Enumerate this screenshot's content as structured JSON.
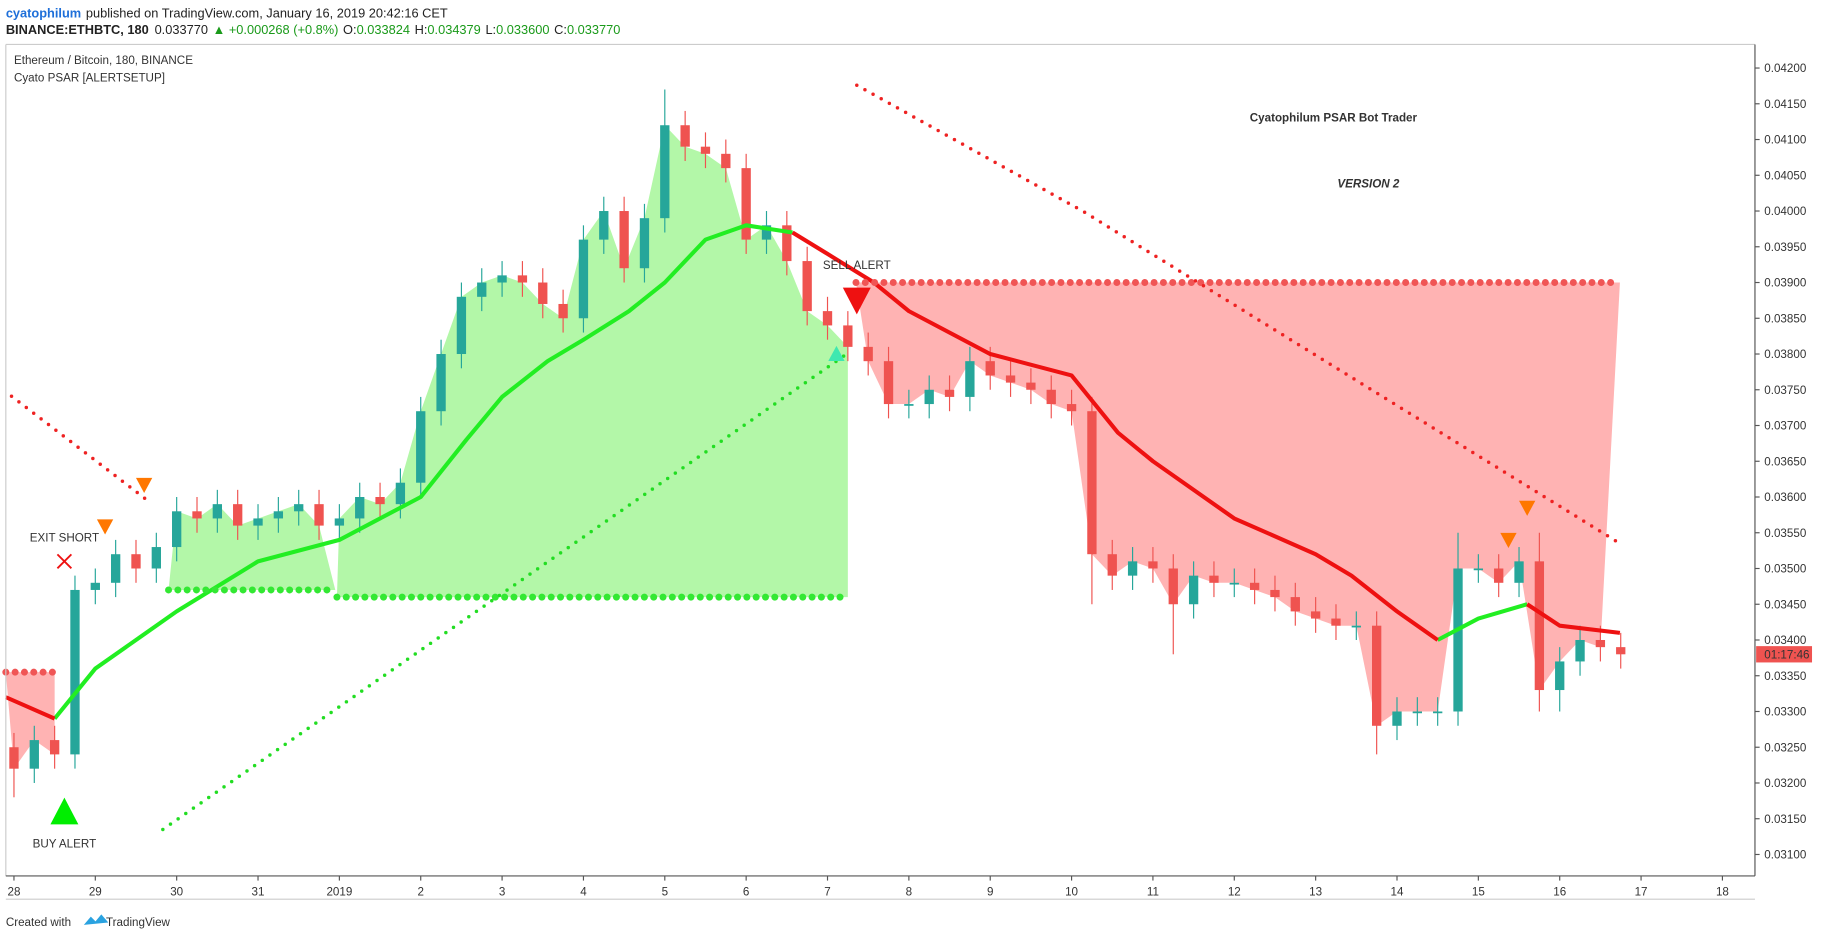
{
  "header": {
    "author": "cyatophilum",
    "published": "published on TradingView.com, January 16, 2019 20:42:16 CET",
    "symbol": "BINANCE:ETHBTC, 180",
    "last": "0.033770",
    "change": "▲ +0.000268 (+0.8%)",
    "o_label": "O:",
    "o": "0.033824",
    "h_label": "H:",
    "h": "0.034379",
    "l_label": "L:",
    "l": "0.033600",
    "c_label": "C:",
    "c": "0.033770"
  },
  "footer": {
    "created": "Created with",
    "brand": "TradingView"
  },
  "chart_data": {
    "type": "candlestick",
    "title": "Cyatophilum PSAR Bot Trader",
    "subtitle": "VERSION 2",
    "legend_title": "Ethereum / Bitcoin, 180, BINANCE",
    "indicator": "Cyato PSAR [ALERTSETUP]",
    "time_tag": "01:17:46",
    "up_color": "#26a69a",
    "down_color": "#ef5350",
    "xlim": [
      -0.1,
      21.4
    ],
    "ylim": [
      0.0307,
      0.04233
    ],
    "xticks": [
      {
        "value": 0,
        "label": "28"
      },
      {
        "value": 1,
        "label": "29"
      },
      {
        "value": 2,
        "label": "30"
      },
      {
        "value": 3,
        "label": "31"
      },
      {
        "value": 4,
        "label": "2019"
      },
      {
        "value": 5,
        "label": "2"
      },
      {
        "value": 6,
        "label": "3"
      },
      {
        "value": 7,
        "label": "4"
      },
      {
        "value": 8,
        "label": "5"
      },
      {
        "value": 9,
        "label": "6"
      },
      {
        "value": 10,
        "label": "7"
      },
      {
        "value": 11,
        "label": "8"
      },
      {
        "value": 12,
        "label": "9"
      },
      {
        "value": 13,
        "label": "10"
      },
      {
        "value": 14,
        "label": "11"
      },
      {
        "value": 15,
        "label": "12"
      },
      {
        "value": 16,
        "label": "13"
      },
      {
        "value": 17,
        "label": "14"
      },
      {
        "value": 18,
        "label": "15"
      },
      {
        "value": 19,
        "label": "16"
      },
      {
        "value": 20,
        "label": "17"
      },
      {
        "value": 21,
        "label": "18"
      }
    ],
    "yticks": [
      {
        "value": 0.042,
        "label": "0.04200"
      },
      {
        "value": 0.0415,
        "label": "0.04150"
      },
      {
        "value": 0.041,
        "label": "0.04100"
      },
      {
        "value": 0.0405,
        "label": "0.04050"
      },
      {
        "value": 0.04,
        "label": "0.04000"
      },
      {
        "value": 0.0395,
        "label": "0.03950"
      },
      {
        "value": 0.039,
        "label": "0.03900"
      },
      {
        "value": 0.0385,
        "label": "0.03850"
      },
      {
        "value": 0.038,
        "label": "0.03800"
      },
      {
        "value": 0.0375,
        "label": "0.03750"
      },
      {
        "value": 0.037,
        "label": "0.03700"
      },
      {
        "value": 0.0365,
        "label": "0.03650"
      },
      {
        "value": 0.036,
        "label": "0.03600"
      },
      {
        "value": 0.0355,
        "label": "0.03550"
      },
      {
        "value": 0.035,
        "label": "0.03500"
      },
      {
        "value": 0.0345,
        "label": "0.03450"
      },
      {
        "value": 0.034,
        "label": "0.03400"
      },
      {
        "value": 0.0335,
        "label": "0.03350"
      },
      {
        "value": 0.033,
        "label": "0.03300"
      },
      {
        "value": 0.0325,
        "label": "0.03250"
      },
      {
        "value": 0.032,
        "label": "0.03200"
      },
      {
        "value": 0.0315,
        "label": "0.03150"
      },
      {
        "value": 0.031,
        "label": "0.03100"
      }
    ],
    "x": [
      0,
      0.25,
      0.5,
      0.75,
      1,
      1.25,
      1.5,
      1.75,
      2,
      2.25,
      2.5,
      2.75,
      3,
      3.25,
      3.5,
      3.75,
      4,
      4.25,
      4.5,
      4.75,
      5,
      5.25,
      5.5,
      5.75,
      6,
      6.25,
      6.5,
      6.75,
      7,
      7.25,
      7.5,
      7.75,
      8,
      8.25,
      8.5,
      8.75,
      9,
      9.25,
      9.5,
      9.75,
      10,
      10.25,
      10.5,
      10.75,
      11,
      11.25,
      11.5,
      11.75,
      12,
      12.25,
      12.5,
      12.75,
      13,
      13.25,
      13.5,
      13.75,
      14,
      14.25,
      14.5,
      14.75,
      15,
      15.25,
      15.5,
      15.75,
      16,
      16.25,
      16.5,
      16.75,
      17,
      17.25,
      17.5,
      17.75,
      18,
      18.25,
      18.5,
      18.75,
      19,
      19.25,
      19.5,
      19.75
    ],
    "open": [
      0.0325,
      0.0322,
      0.0326,
      0.0324,
      0.0347,
      0.0348,
      0.0352,
      0.035,
      0.0353,
      0.0358,
      0.0357,
      0.0359,
      0.0356,
      0.0357,
      0.0358,
      0.0359,
      0.0356,
      0.0357,
      0.036,
      0.0359,
      0.0362,
      0.0372,
      0.038,
      0.0388,
      0.039,
      0.0391,
      0.039,
      0.0387,
      0.0385,
      0.0396,
      0.04,
      0.0392,
      0.0399,
      0.0412,
      0.0409,
      0.0408,
      0.0406,
      0.0396,
      0.0398,
      0.0393,
      0.0386,
      0.0384,
      0.0381,
      0.0379,
      0.0373,
      0.0373,
      0.0375,
      0.0374,
      0.0379,
      0.0377,
      0.0376,
      0.0375,
      0.0373,
      0.0372,
      0.0352,
      0.0349,
      0.0351,
      0.035,
      0.0345,
      0.0349,
      0.0348,
      0.0348,
      0.0347,
      0.0346,
      0.0344,
      0.0343,
      0.0342,
      0.0342,
      0.0328,
      0.033,
      0.033,
      0.033,
      0.035,
      0.035,
      0.0348,
      0.0351,
      0.0333,
      0.0337,
      0.034,
      0.0339
    ],
    "high": [
      0.0327,
      0.0328,
      0.0328,
      0.0349,
      0.035,
      0.0354,
      0.0354,
      0.0355,
      0.036,
      0.036,
      0.0361,
      0.0361,
      0.0359,
      0.036,
      0.0361,
      0.0361,
      0.0359,
      0.0362,
      0.0362,
      0.0364,
      0.0374,
      0.0382,
      0.039,
      0.0392,
      0.0393,
      0.0393,
      0.0392,
      0.0389,
      0.0398,
      0.0402,
      0.0402,
      0.0401,
      0.0417,
      0.0414,
      0.0411,
      0.041,
      0.0408,
      0.04,
      0.04,
      0.0395,
      0.0388,
      0.0386,
      0.0383,
      0.0381,
      0.0375,
      0.0377,
      0.0377,
      0.0381,
      0.0381,
      0.0379,
      0.0378,
      0.0377,
      0.0375,
      0.0374,
      0.0354,
      0.0353,
      0.0353,
      0.0352,
      0.0351,
      0.0351,
      0.035,
      0.035,
      0.0349,
      0.0348,
      0.0346,
      0.0345,
      0.0344,
      0.0344,
      0.0332,
      0.0332,
      0.0332,
      0.0355,
      0.0352,
      0.0352,
      0.0353,
      0.0355,
      0.0339,
      0.0342,
      0.0342,
      0.0341
    ],
    "low": [
      0.0318,
      0.032,
      0.0322,
      0.0322,
      0.0345,
      0.0346,
      0.0348,
      0.0348,
      0.0351,
      0.0355,
      0.0355,
      0.0354,
      0.0354,
      0.0355,
      0.0356,
      0.0354,
      0.0354,
      0.0355,
      0.0357,
      0.0357,
      0.036,
      0.037,
      0.0378,
      0.0386,
      0.0388,
      0.0388,
      0.0385,
      0.0383,
      0.0383,
      0.0394,
      0.039,
      0.039,
      0.0397,
      0.0407,
      0.0406,
      0.0404,
      0.0394,
      0.0394,
      0.0391,
      0.0384,
      0.0382,
      0.0379,
      0.0377,
      0.0371,
      0.0371,
      0.0371,
      0.0372,
      0.0372,
      0.0375,
      0.0374,
      0.0373,
      0.0371,
      0.037,
      0.0345,
      0.0347,
      0.0347,
      0.0348,
      0.0338,
      0.0343,
      0.0346,
      0.0346,
      0.0345,
      0.0344,
      0.0342,
      0.0341,
      0.034,
      0.034,
      0.0324,
      0.0326,
      0.0328,
      0.0328,
      0.0328,
      0.0348,
      0.0346,
      0.0346,
      0.033,
      0.033,
      0.0335,
      0.0337,
      0.0336
    ],
    "close": [
      0.0322,
      0.0326,
      0.0324,
      0.0347,
      0.0348,
      0.0352,
      0.035,
      0.0353,
      0.0358,
      0.0357,
      0.0359,
      0.0356,
      0.0357,
      0.0358,
      0.0359,
      0.0356,
      0.0357,
      0.036,
      0.0359,
      0.0362,
      0.0372,
      0.038,
      0.0388,
      0.039,
      0.0391,
      0.039,
      0.0387,
      0.0385,
      0.0396,
      0.04,
      0.0392,
      0.0399,
      0.0412,
      0.0409,
      0.0408,
      0.0406,
      0.0396,
      0.0398,
      0.0393,
      0.0386,
      0.0384,
      0.0381,
      0.0379,
      0.0373,
      0.0373,
      0.0375,
      0.0374,
      0.0379,
      0.0377,
      0.0376,
      0.0375,
      0.0373,
      0.0372,
      0.0352,
      0.0349,
      0.0351,
      0.035,
      0.0345,
      0.0349,
      0.0348,
      0.0348,
      0.0347,
      0.0346,
      0.0344,
      0.0343,
      0.0342,
      0.0342,
      0.0328,
      0.033,
      0.033,
      0.033,
      0.035,
      0.035,
      0.0348,
      0.0351,
      0.0333,
      0.0337,
      0.034,
      0.0339,
      0.0338
    ],
    "ma": {
      "x": [
        -0.1,
        0.5,
        1,
        2,
        3,
        4,
        5,
        5.56,
        6,
        6.56,
        7,
        7.56,
        8,
        8.5,
        9,
        9.57,
        10,
        10.57,
        11,
        12,
        13,
        13.57,
        14,
        15,
        16,
        16.44,
        17,
        17.5,
        18,
        18.6,
        19,
        19.74
      ],
      "series": [
        {
          "color": "#22ee22",
          "values": [
            null,
            0.0329,
            0.0336,
            0.0344,
            0.0351,
            0.0354,
            0.036,
            0.0368,
            0.0374,
            0.0379,
            0.0382,
            0.0386,
            0.039,
            0.0396,
            0.0398,
            0.0397,
            null,
            null,
            null,
            null,
            null,
            null,
            null,
            null,
            null,
            null,
            null,
            0.034,
            0.0343,
            0.0345,
            null,
            null
          ]
        },
        {
          "color": "#ee1111",
          "values": [
            0.0332,
            0.0329,
            null,
            null,
            null,
            null,
            null,
            null,
            null,
            null,
            null,
            null,
            null,
            null,
            null,
            0.0397,
            0.0394,
            0.039,
            0.0386,
            0.038,
            0.0377,
            0.0369,
            0.0365,
            0.0357,
            0.0352,
            0.0349,
            0.0344,
            0.034,
            null,
            0.0345,
            0.0342,
            0.0341
          ]
        }
      ]
    },
    "stops": [
      {
        "x": [
          -0.1,
          0.5
        ],
        "level": 0.03355,
        "color": "#f05555",
        "fill": "#ffb3b3"
      },
      {
        "x": [
          1.9,
          3.95
        ],
        "level": 0.0347,
        "color": "#33e833",
        "fill": "#b3f7a8"
      },
      {
        "x": [
          3.97,
          10.25
        ],
        "level": 0.0346,
        "color": "#33e833",
        "fill": "#b3f7a8"
      },
      {
        "x": [
          10.35,
          19.74
        ],
        "level": 0.039,
        "color": "#f05555",
        "fill": "#ffb3b3"
      }
    ],
    "psar": [
      {
        "color": "#ee2222",
        "x": [
          -0.03,
          1.69
        ],
        "values": [
          0.03741,
          0.03591
        ]
      },
      {
        "color": "#22dd22",
        "x": [
          1.83,
          10.21
        ],
        "values": [
          0.03135,
          0.03798
        ]
      },
      {
        "color": "#ee2222",
        "x": [
          10.36,
          13.15,
          19.74
        ],
        "values": [
          0.04176,
          0.03999,
          0.03535
        ]
      }
    ],
    "markers": [
      {
        "kind": "buy",
        "x": 0.62,
        "y": 0.0316,
        "color": "#00ee00",
        "label": "BUY ALERT"
      },
      {
        "kind": "exit",
        "x": 0.62,
        "y": 0.0351,
        "color": "#ee1111",
        "label": "EXIT SHORT"
      },
      {
        "kind": "sell",
        "x": 10.36,
        "y": 0.03875,
        "color": "#ee1111",
        "label": "SELL ALERT"
      },
      {
        "kind": "signal-up",
        "x": 10.11,
        "y": 0.038,
        "color": "#3ee8b0"
      },
      {
        "kind": "signal-down",
        "x": 1.12,
        "y": 0.03559,
        "color": "#ff7700"
      },
      {
        "kind": "signal-down",
        "x": 1.6,
        "y": 0.03617,
        "color": "#ff7700"
      },
      {
        "kind": "signal-down",
        "x": 18.37,
        "y": 0.0354,
        "color": "#ff7700"
      },
      {
        "kind": "signal-down",
        "x": 18.6,
        "y": 0.03585,
        "color": "#ff7700"
      }
    ]
  }
}
